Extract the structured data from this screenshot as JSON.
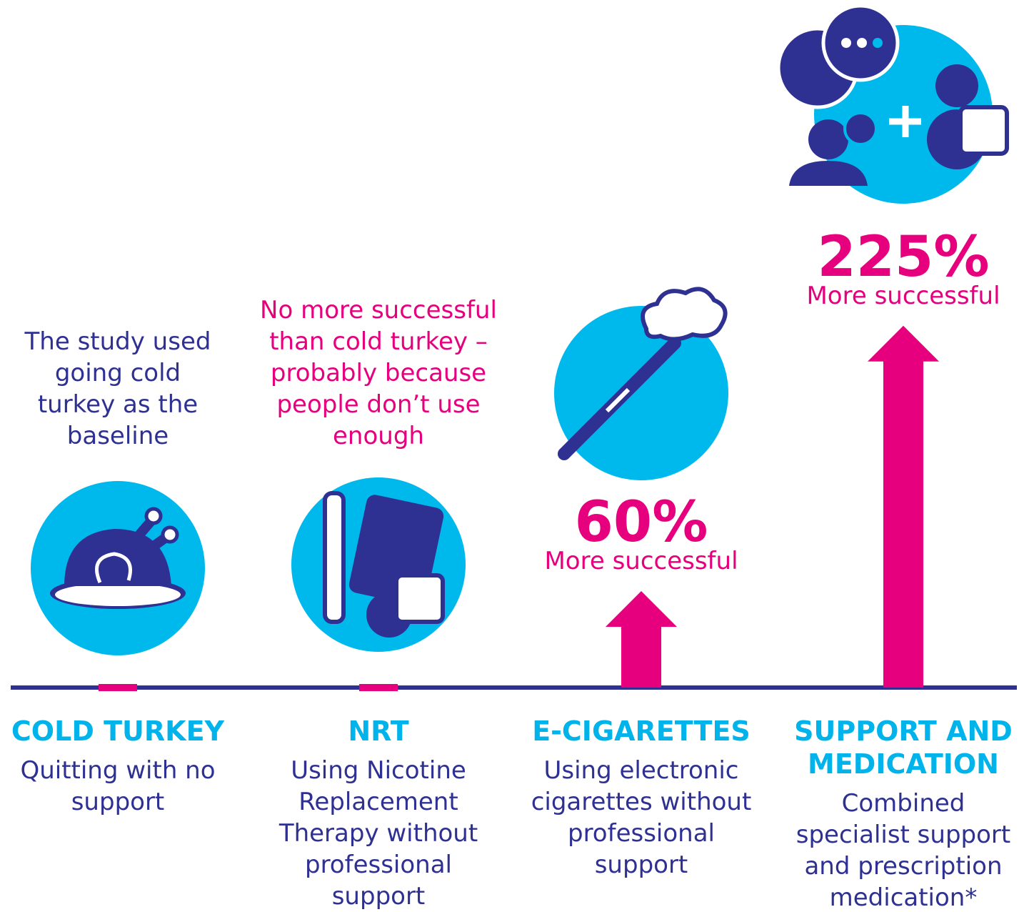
{
  "chart_data": {
    "type": "bar",
    "categories": [
      "COLD TURKEY",
      "NRT",
      "E-CIGARETTES",
      "SUPPORT AND MEDICATION"
    ],
    "descriptions": [
      "Quitting with no support",
      "Using Nicotine Replacement Therapy without professional support",
      "Using electronic cigarettes without professional support",
      "Combined specialist support and prescription medication*"
    ],
    "annotations": [
      "The study used going cold turkey as the baseline",
      "No more successful than cold turkey – probably because people don’t use enough",
      null,
      null
    ],
    "values": [
      0,
      0,
      60,
      225
    ],
    "value_labels": [
      null,
      null,
      "60%",
      "225%"
    ],
    "value_captions": [
      null,
      null,
      "More successful",
      "More successful"
    ],
    "color": "#e6007e"
  }
}
